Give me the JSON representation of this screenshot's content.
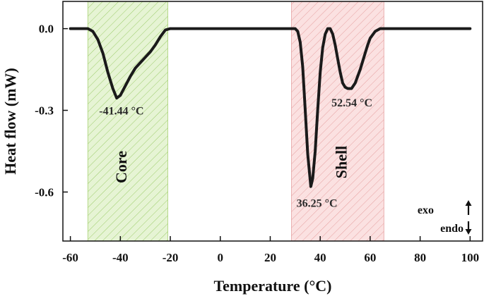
{
  "chart_data": {
    "type": "line",
    "xlabel": "Temperature (°C)",
    "ylabel": "Heat flow (mW)",
    "xlim": [
      -63,
      105
    ],
    "ylim": [
      -0.78,
      0.1
    ],
    "x_ticks": [
      -60,
      -40,
      -20,
      0,
      20,
      40,
      60,
      80,
      100
    ],
    "x_tick_labels": [
      "-60",
      "-40",
      "-20",
      "0",
      "20",
      "40",
      "60",
      "80",
      "100"
    ],
    "y_ticks": [
      0.0,
      -0.3,
      -0.6
    ],
    "y_tick_labels": [
      "0.0",
      "-0.3",
      "-0.6"
    ],
    "grid": false,
    "series": [
      {
        "color": "#1a1a1a",
        "x": [
          -60,
          -53,
          -51,
          -49,
          -47,
          -45,
          -43,
          -41.44,
          -40,
          -38,
          -36,
          -34,
          -32,
          -30,
          -28,
          -26,
          -24,
          -22,
          -20,
          0,
          20,
          30,
          31,
          32,
          33,
          34,
          35,
          36.25,
          37,
          38,
          39,
          40,
          41,
          42,
          43,
          44,
          45,
          46,
          47,
          48,
          49,
          50,
          51,
          52.54,
          54,
          55,
          56,
          57,
          58,
          59,
          60,
          62,
          64,
          66,
          70,
          80,
          90,
          100
        ],
        "y": [
          0.0,
          0.0,
          -0.01,
          -0.04,
          -0.09,
          -0.16,
          -0.22,
          -0.255,
          -0.245,
          -0.21,
          -0.175,
          -0.145,
          -0.125,
          -0.105,
          -0.085,
          -0.06,
          -0.03,
          -0.005,
          0.0,
          0.0,
          0.0,
          0.0,
          -0.01,
          -0.05,
          -0.14,
          -0.3,
          -0.46,
          -0.58,
          -0.55,
          -0.45,
          -0.3,
          -0.16,
          -0.07,
          -0.02,
          0.0,
          0.0,
          -0.02,
          -0.06,
          -0.11,
          -0.16,
          -0.2,
          -0.215,
          -0.22,
          -0.22,
          -0.2,
          -0.175,
          -0.15,
          -0.12,
          -0.09,
          -0.06,
          -0.035,
          -0.01,
          0.0,
          0.0,
          0.0,
          0.0,
          0.0,
          0.0
        ]
      }
    ],
    "regions": [
      {
        "label": "Core",
        "x_start": -53,
        "x_end": -21,
        "color": "#c8e6a0",
        "hatch_color": "#8cbf5a"
      },
      {
        "label": "Shell",
        "x_start": 28.5,
        "x_end": 65.5,
        "color": "#f8c8c8",
        "hatch_color": "#e09090"
      }
    ],
    "annotations": [
      {
        "text": "-41.44 °C",
        "x": -48.5,
        "y": -0.315
      },
      {
        "text": "52.54 °C",
        "x": 44.5,
        "y": -0.285
      },
      {
        "text": "36.25 °C",
        "x": 30.5,
        "y": -0.655
      }
    ],
    "legend": {
      "exo": "exo",
      "endo": "endo"
    }
  }
}
